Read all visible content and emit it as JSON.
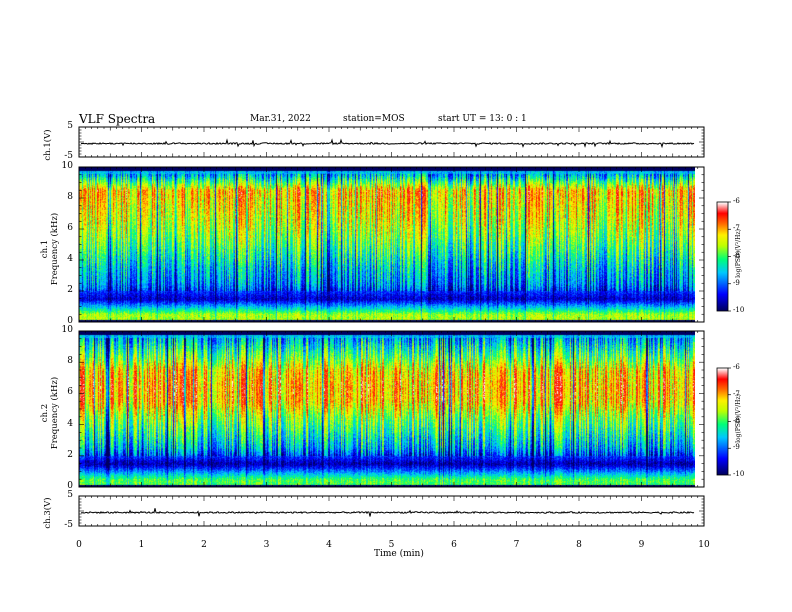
{
  "header": {
    "title": "VLF Spectra",
    "date": "Mar.31, 2022",
    "station": "station=MOS",
    "start": "start  UT =   13: 0  : 1"
  },
  "colors": {
    "spectrum_scale": [
      "#000060",
      "#0000ff",
      "#00c0ff",
      "#00ff80",
      "#c0ff00",
      "#ffff00",
      "#ff6000",
      "#ff0000",
      "#ffffff"
    ]
  },
  "chart_data": [
    {
      "type": "line",
      "panel": "ch1-waveform",
      "ylabel": "ch.1(V)",
      "ylim": [
        -5,
        5
      ],
      "yticks": [
        "5",
        "-5"
      ],
      "xlim": [
        0,
        10
      ],
      "series": [
        {
          "values_description_level": -0.5
        }
      ]
    },
    {
      "type": "heatmap",
      "panel": "ch1-spectrogram",
      "ylabel": "ch.1\nFrequency (kHz)",
      "ylim": [
        0,
        10
      ],
      "yticks": [
        "0",
        "2",
        "4",
        "6",
        "8",
        "10"
      ],
      "xlim": [
        0,
        9.85
      ],
      "colorbar": {
        "label": "log(PSD)(V²/Hz)",
        "range": [
          -10,
          -6
        ],
        "ticks": [
          "-6",
          "-7",
          "-8",
          "-9",
          "-10"
        ]
      },
      "frequency_profile_kHz": [
        0.5,
        1.5,
        2.5,
        3.5,
        4.5,
        5.5,
        6.5,
        7.5,
        8.5,
        9.5
      ],
      "frequency_profile_logpsd": [
        -7.6,
        -9.6,
        -8.8,
        -8.5,
        -8.1,
        -7.7,
        -7.4,
        -7.2,
        -7.0,
        -8.6
      ]
    },
    {
      "type": "heatmap",
      "panel": "ch2-spectrogram",
      "ylabel": "ch.2\nFrequency (kHz)",
      "ylim": [
        0,
        10
      ],
      "yticks": [
        "0",
        "2",
        "4",
        "6",
        "8",
        "10"
      ],
      "xlim": [
        0,
        9.85
      ],
      "colorbar": {
        "label": "log(PSD)(V²/Hz)",
        "range": [
          -10,
          -6
        ],
        "ticks": [
          "-6",
          "-7",
          "-8",
          "-9",
          "-10"
        ]
      },
      "frequency_profile_kHz": [
        0.5,
        1.5,
        2.5,
        3.5,
        4.5,
        5.5,
        6.5,
        7.5,
        8.5,
        9.5
      ],
      "frequency_profile_logpsd": [
        -7.9,
        -9.7,
        -8.6,
        -8.1,
        -7.6,
        -7.0,
        -6.9,
        -7.1,
        -7.9,
        -8.6
      ]
    },
    {
      "type": "line",
      "panel": "ch3-waveform",
      "ylabel": "ch.3(V)",
      "ylim": [
        -5,
        5
      ],
      "yticks": [
        "5",
        "-5"
      ],
      "xlim": [
        0,
        10
      ],
      "series": [
        {
          "values_description_level": -0.5
        }
      ]
    }
  ],
  "xaxis": {
    "label": "Time  (min)",
    "ticks": [
      "0",
      "1",
      "2",
      "3",
      "4",
      "5",
      "6",
      "7",
      "8",
      "9",
      "10"
    ]
  }
}
